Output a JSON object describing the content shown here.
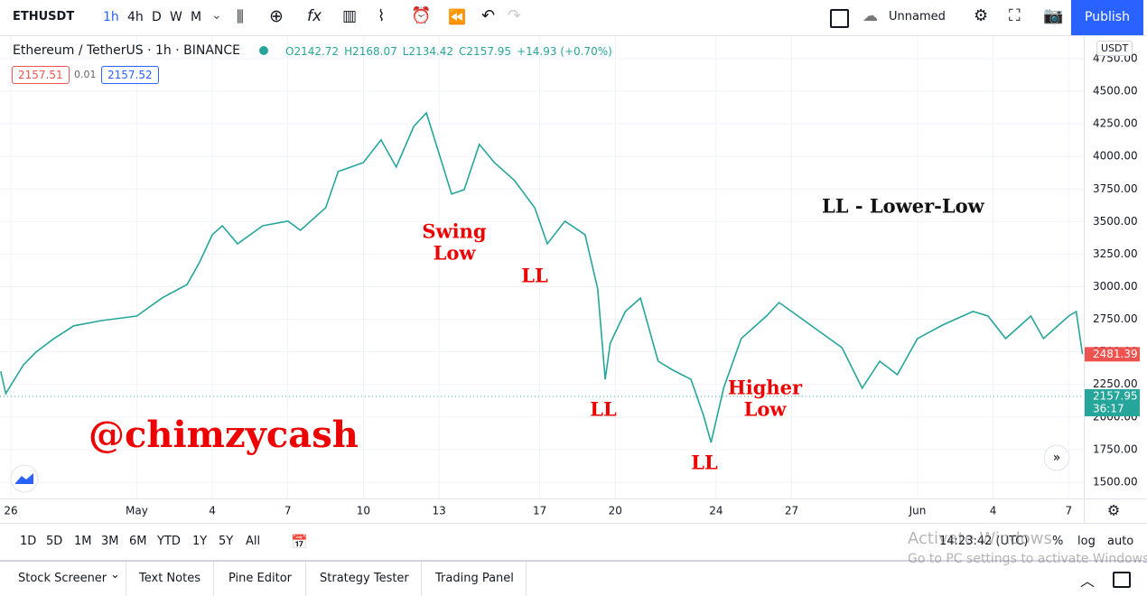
{
  "toolbar": {
    "symbol": "ETHUSDT",
    "intervals": [
      "1h",
      "4h",
      "D",
      "W",
      "M"
    ],
    "layout_name": "Unnamed",
    "publish": "Publish"
  },
  "legend": {
    "title": "Ethereum / TetherUS · 1h · BINANCE",
    "ohlc": [
      "O2142.72",
      "H2168.07",
      "L2134.42",
      "C2157.95",
      "+14.93 (+0.70%)"
    ],
    "bid": "2157.51",
    "spread": "0.01",
    "ask": "2157.52"
  },
  "currency": "USDT",
  "chart_data": {
    "type": "line",
    "color": "#26a69a",
    "grid": true,
    "x": [
      -0.4,
      -0.2,
      0.5,
      1.0,
      1.7,
      2.5,
      3.6,
      5,
      6,
      7,
      7.5,
      8,
      8.4,
      9,
      10,
      11,
      11.5,
      12.5,
      13,
      14,
      14.7,
      15.3,
      16,
      16.5,
      17,
      17.5,
      18,
      18.6,
      19.2,
      20,
      20.8,
      21.3,
      22,
      22.8,
      23.3,
      23.6,
      23.8,
      24.4,
      25,
      25.7,
      26.3,
      27,
      27.5,
      27.8,
      28.3,
      29,
      30,
      30.5,
      31,
      32,
      33,
      33.8,
      34.5,
      35.2,
      36,
      37,
      38.2,
      38.8,
      39.5,
      40.5,
      41,
      42,
      42.3,
      42.55
    ],
    "values": [
      2350,
      2180,
      2400,
      2498,
      2600,
      2700,
      2740,
      2775,
      2913,
      3017,
      3190,
      3399,
      3468,
      3329,
      3468,
      3503,
      3433,
      3606,
      3884,
      3953,
      4127,
      3918,
      4230,
      4334,
      4022,
      3711,
      3745,
      4092,
      3953,
      3815,
      3606,
      3329,
      3503,
      3399,
      2983,
      2290,
      2567,
      2810,
      2913,
      2428,
      2359,
      2290,
      2013,
      1805,
      2221,
      2602,
      2775,
      2879,
      2810,
      2671,
      2532,
      2221,
      2428,
      2325,
      2602,
      2706,
      2810,
      2775,
      2602,
      2775,
      2602,
      2775,
      2810,
      2481.39
    ],
    "xlim": [
      -0.43,
      42.6
    ],
    "xticks": [
      {
        "value": 0,
        "label": "26"
      },
      {
        "value": 5,
        "label": "May"
      },
      {
        "value": 8,
        "label": "4"
      },
      {
        "value": 11,
        "label": "7"
      },
      {
        "value": 14,
        "label": "10"
      },
      {
        "value": 17,
        "label": "13"
      },
      {
        "value": 21,
        "label": "17"
      },
      {
        "value": 24,
        "label": "20"
      },
      {
        "value": 28,
        "label": "24"
      },
      {
        "value": 31,
        "label": "27"
      },
      {
        "value": 36,
        "label": "Jun"
      },
      {
        "value": 39,
        "label": "4"
      },
      {
        "value": 42,
        "label": "7"
      }
    ],
    "ylim": [
      1375,
      4923
    ],
    "yticks": [
      {
        "value": 1500,
        "label": "1500.00"
      },
      {
        "value": 1750,
        "label": "1750.00"
      },
      {
        "value": 2000,
        "label": "2000.00"
      },
      {
        "value": 2250,
        "label": "2250.00"
      },
      {
        "value": 2500,
        "label": "2500.00"
      },
      {
        "value": 2750,
        "label": "2750.00"
      },
      {
        "value": 3000,
        "label": "3000.00"
      },
      {
        "value": 3250,
        "label": "3250.00"
      },
      {
        "value": 3500,
        "label": "3500.00"
      },
      {
        "value": 3750,
        "label": "3750.00"
      },
      {
        "value": 4000,
        "label": "4000.00"
      },
      {
        "value": 4250,
        "label": "4250.00"
      },
      {
        "value": 4500,
        "label": "4500.00"
      },
      {
        "value": 4750,
        "label": "4750.00"
      }
    ],
    "last_price": 2481.39,
    "current_price": 2157.95,
    "countdown": "36:17",
    "annotations": [
      [
        "Swing",
        "Low"
      ],
      [
        "LL"
      ],
      [
        "LL"
      ],
      [
        "LL"
      ],
      [
        "Higher",
        "Low"
      ]
    ],
    "legend_note": "LL - Lower-Low",
    "watermark": "@chimzycash"
  },
  "ranges": [
    "1D",
    "5D",
    "1M",
    "3M",
    "6M",
    "YTD",
    "1Y",
    "5Y",
    "All"
  ],
  "clock": "14:23:42 (UTC)",
  "scale_options": [
    "%",
    "log",
    "auto"
  ],
  "tabs": [
    "Stock Screener",
    "Text Notes",
    "Pine Editor",
    "Strategy Tester",
    "Trading Panel"
  ],
  "os_notice": [
    "Activate Windows",
    "Go to PC settings to activate Windows."
  ]
}
